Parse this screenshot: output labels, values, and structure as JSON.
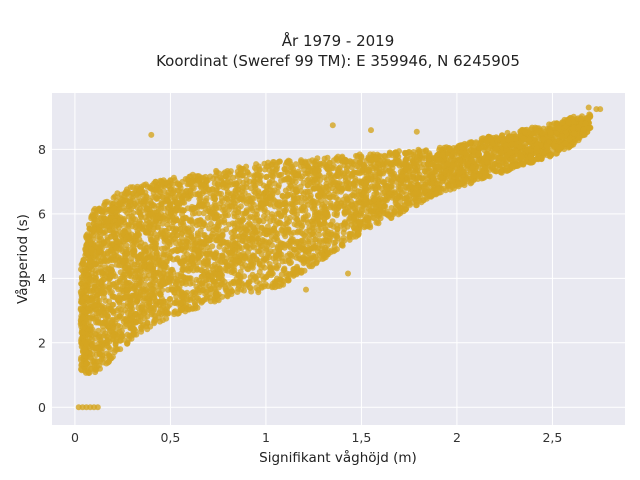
{
  "chart_data": {
    "type": "scatter",
    "title_line1": "År 1979 - 2019",
    "title_line2": "Koordinat (Sweref 99 TM): E 359946, N 6245905",
    "xlabel": "Signifikant våghöjd (m)",
    "ylabel": "Vågperiod (s)",
    "xlim": [
      -0.12,
      2.88
    ],
    "ylim": [
      -0.55,
      9.75
    ],
    "xticks": [
      0,
      0.5,
      1,
      1.5,
      2,
      2.5
    ],
    "xtick_labels": [
      "0",
      "0,5",
      "1",
      "1,5",
      "2",
      "2,5"
    ],
    "yticks": [
      0,
      2,
      4,
      6,
      8
    ],
    "ytick_labels": [
      "0",
      "2",
      "4",
      "6",
      "8"
    ],
    "grid": true,
    "background": "#e9e9f1",
    "marker_color": "#d4a520",
    "density_envelope": {
      "x": [
        0.03,
        0.06,
        0.1,
        0.2,
        0.3,
        0.4,
        0.5,
        0.6,
        0.7,
        0.8,
        0.9,
        1.0,
        1.1,
        1.2,
        1.3,
        1.4,
        1.5,
        1.6,
        1.7,
        1.8,
        1.9,
        2.0,
        2.1,
        2.2,
        2.3,
        2.4,
        2.5,
        2.6,
        2.7
      ],
      "y_low": [
        1.1,
        1.05,
        1.05,
        1.5,
        2.1,
        2.5,
        2.8,
        3.0,
        3.2,
        3.4,
        3.5,
        3.6,
        3.8,
        4.2,
        4.6,
        5.0,
        5.4,
        5.7,
        6.0,
        6.3,
        6.6,
        6.8,
        7.0,
        7.2,
        7.4,
        7.6,
        7.8,
        8.1,
        8.6
      ],
      "y_high": [
        4.3,
        5.4,
        6.2,
        6.6,
        6.85,
        7.0,
        7.1,
        7.2,
        7.3,
        7.4,
        7.5,
        7.6,
        7.65,
        7.7,
        7.75,
        7.8,
        7.85,
        7.9,
        7.95,
        8.0,
        8.05,
        8.1,
        8.3,
        8.45,
        8.55,
        8.7,
        8.8,
        9.0,
        9.1
      ]
    },
    "zero_period_points": {
      "x": [
        0.02,
        0.04,
        0.06,
        0.08,
        0.1,
        0.12
      ],
      "y": [
        0,
        0,
        0,
        0,
        0,
        0
      ]
    },
    "outliers": {
      "x": [
        0.4,
        1.35,
        1.55,
        1.79,
        2.69,
        2.73,
        2.75,
        1.43,
        1.21,
        0.68
      ],
      "y": [
        8.45,
        8.75,
        8.6,
        8.55,
        9.3,
        9.25,
        9.25,
        4.15,
        3.65,
        4.2
      ]
    }
  }
}
